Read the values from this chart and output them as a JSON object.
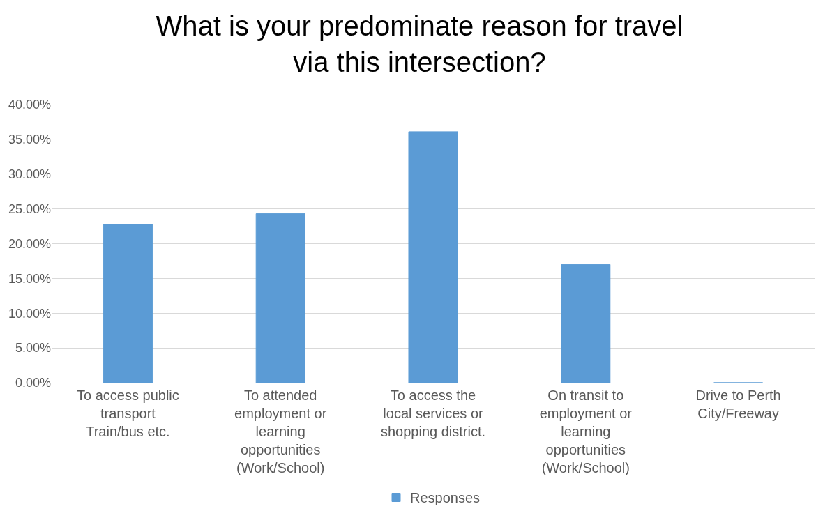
{
  "chart_data": {
    "type": "bar",
    "title": "What is your predominate reason for travel via this intersection?",
    "categories": [
      "To access public transport Train/bus etc.",
      "To attended employment or learning opportunities (Work/School)",
      "To access the local services or shopping district.",
      "On transit to employment or learning opportunities (Work/School)",
      "Drive to Perth City/Freeway"
    ],
    "series": [
      {
        "name": "Responses",
        "color": "#5b9bd5",
        "values": [
          22.8,
          24.3,
          36.1,
          17.0,
          0
        ]
      }
    ],
    "ylim": [
      0,
      40
    ],
    "yticks": [
      {
        "value": 0,
        "label": "0.00%"
      },
      {
        "value": 5,
        "label": "5.00%"
      },
      {
        "value": 10,
        "label": "10.00%"
      },
      {
        "value": 15,
        "label": "15.00%"
      },
      {
        "value": 20,
        "label": "20.00%"
      },
      {
        "value": 25,
        "label": "25.00%"
      },
      {
        "value": 30,
        "label": "30.00%"
      },
      {
        "value": 35,
        "label": "35.00%"
      },
      {
        "value": 40,
        "label": "40.00%"
      }
    ],
    "grid": "y",
    "legend": "bottom"
  }
}
